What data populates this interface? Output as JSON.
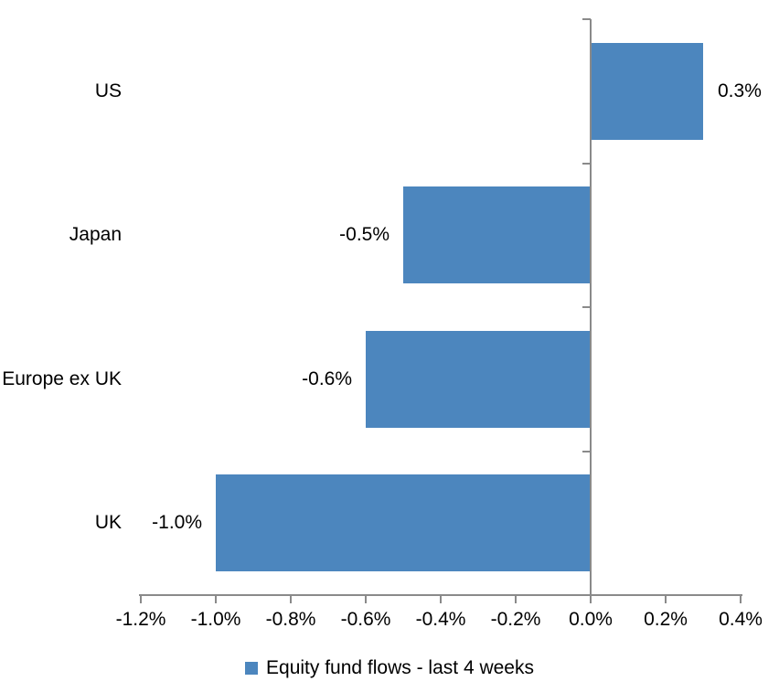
{
  "chart_data": {
    "type": "bar",
    "orientation": "horizontal",
    "title": "",
    "xlabel": "",
    "ylabel": "",
    "categories": [
      "US",
      "Japan",
      "Europe ex UK",
      "UK"
    ],
    "series": [
      {
        "name": "Equity fund flows - last 4 weeks",
        "values": [
          0.3,
          -0.5,
          -0.6,
          -1.0
        ],
        "data_labels": [
          "0.3%",
          "-0.5%",
          "-0.6%",
          "-1.0%"
        ]
      }
    ],
    "xlim": [
      -1.2,
      0.4
    ],
    "x_tick_values": [
      -1.2,
      -1.0,
      -0.8,
      -0.6,
      -0.4,
      -0.2,
      0.0,
      0.2,
      0.4
    ],
    "x_tick_labels": [
      "-1.2%",
      "-1.0%",
      "-0.8%",
      "-0.6%",
      "-0.4%",
      "-0.2%",
      "0.0%",
      "0.2%",
      "0.4%"
    ],
    "grid": false,
    "legend_position": "bottom",
    "colors": {
      "bar": "#4C86BE",
      "axis": "#8A8A8A",
      "text": "#000000",
      "background": "#FFFFFF"
    }
  },
  "legend": {
    "series_label": "Equity fund flows - last 4 weeks"
  }
}
